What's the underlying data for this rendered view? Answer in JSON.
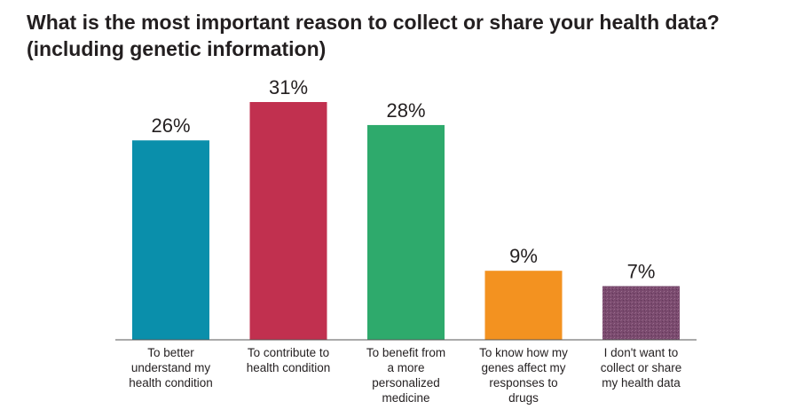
{
  "title": {
    "line1": "What is the most important reason to collect or share your health data?",
    "line2": "(including genetic information)"
  },
  "chart_data": {
    "type": "bar",
    "categories": [
      "To better understand my health condition",
      "To contribute to health condition",
      "To benefit from a more personalized medicine",
      "To know how my genes affect my responses to drugs",
      "I don't want to collect or share my health data"
    ],
    "category_lines": [
      [
        "To better",
        "understand my",
        "health condition"
      ],
      [
        "To contribute to",
        "health condition"
      ],
      [
        "To benefit from",
        "a more",
        "personalized",
        "medicine"
      ],
      [
        "To know how my",
        "genes affect my",
        "responses to",
        "drugs"
      ],
      [
        "I don't want to",
        "collect or share",
        "my health data"
      ]
    ],
    "values": [
      26,
      31,
      28,
      9,
      7
    ],
    "value_labels": [
      "26%",
      "31%",
      "28%",
      "9%",
      "7%"
    ],
    "colors": [
      "#0a8fab",
      "#c1304f",
      "#2eaa6c",
      "#f39220",
      "#7a4a6e"
    ],
    "ylim": [
      0,
      31
    ],
    "xlabel": "",
    "ylabel": "",
    "grid": false,
    "legend": "none"
  }
}
